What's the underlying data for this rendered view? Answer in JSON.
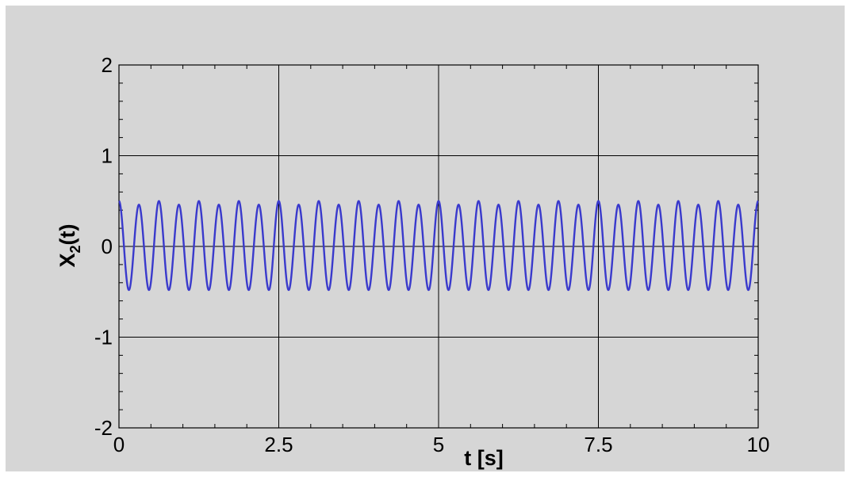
{
  "chart_data": {
    "type": "line",
    "title": "",
    "xlabel": "t [s]",
    "ylabel_main": "X",
    "ylabel_sub": "2",
    "ylabel_rest": "(t)",
    "xlim": [
      0,
      10
    ],
    "ylim": [
      -2,
      2
    ],
    "x_ticks": [
      0,
      2.5,
      5,
      7.5,
      10
    ],
    "x_tick_labels": [
      "0",
      "2.5",
      "5",
      "7.5",
      "10"
    ],
    "y_ticks": [
      -2,
      -1,
      0,
      1,
      2
    ],
    "y_tick_labels": [
      "-2",
      "-1",
      "0",
      "1",
      "2"
    ],
    "grid": true,
    "series": [
      {
        "color": "#3a3acc",
        "signal": "approximately 0.49*cos(2*pi*3.2*t) with a slow beat; amplitude 0.46 to 0.50",
        "frequency_hz": 3.2,
        "amplitude_max": 0.5,
        "amplitude_min": 0.46
      }
    ]
  }
}
